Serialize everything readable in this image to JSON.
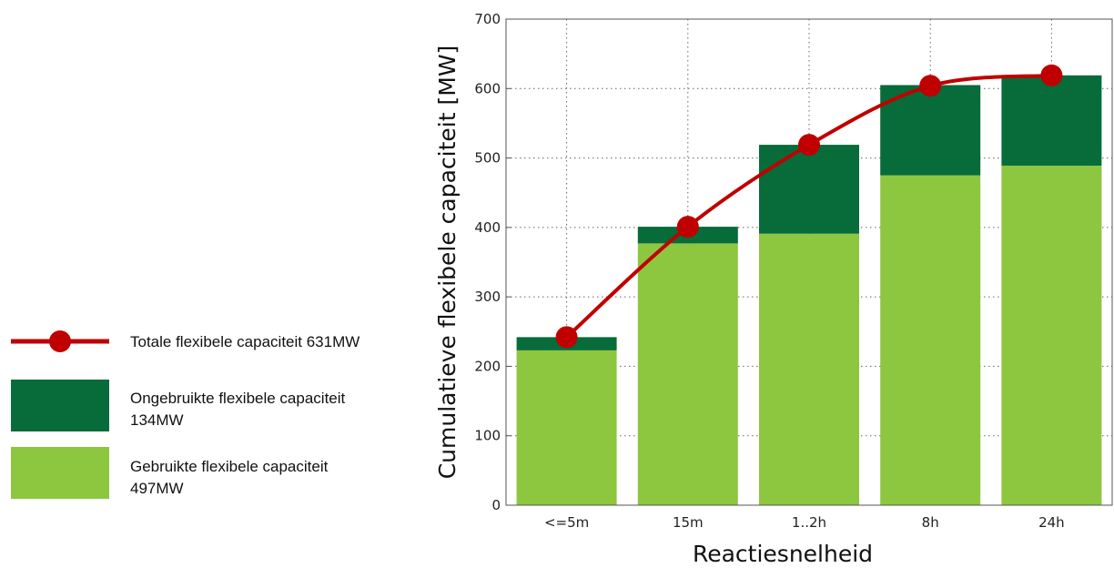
{
  "chart_data": {
    "type": "bar",
    "stacked": true,
    "categories": [
      "<=5m",
      "15m",
      "1..2h",
      "8h",
      "24h"
    ],
    "series": [
      {
        "name": "Gebruikte flexibele capaciteit 497MW",
        "kind": "bar",
        "color": "#8dc63f",
        "values": [
          223,
          377,
          391,
          475,
          489
        ]
      },
      {
        "name": "Ongebruikte flexibele capaciteit 134MW",
        "kind": "bar",
        "color": "#076b3a",
        "values": [
          19,
          24,
          128,
          130,
          130
        ]
      },
      {
        "name": "Totale flexibele capaciteit 631MW",
        "kind": "line",
        "color": "#c00000",
        "values": [
          242,
          401,
          519,
          604,
          619
        ]
      }
    ],
    "xlabel": "Reactiesnelheid",
    "ylabel": "Cumulatieve flexibele capaciteit [MW]",
    "ylim": [
      0,
      700
    ],
    "yticks": [
      0,
      100,
      200,
      300,
      400,
      500,
      600,
      700
    ],
    "grid": true,
    "legend_position": "left"
  }
}
